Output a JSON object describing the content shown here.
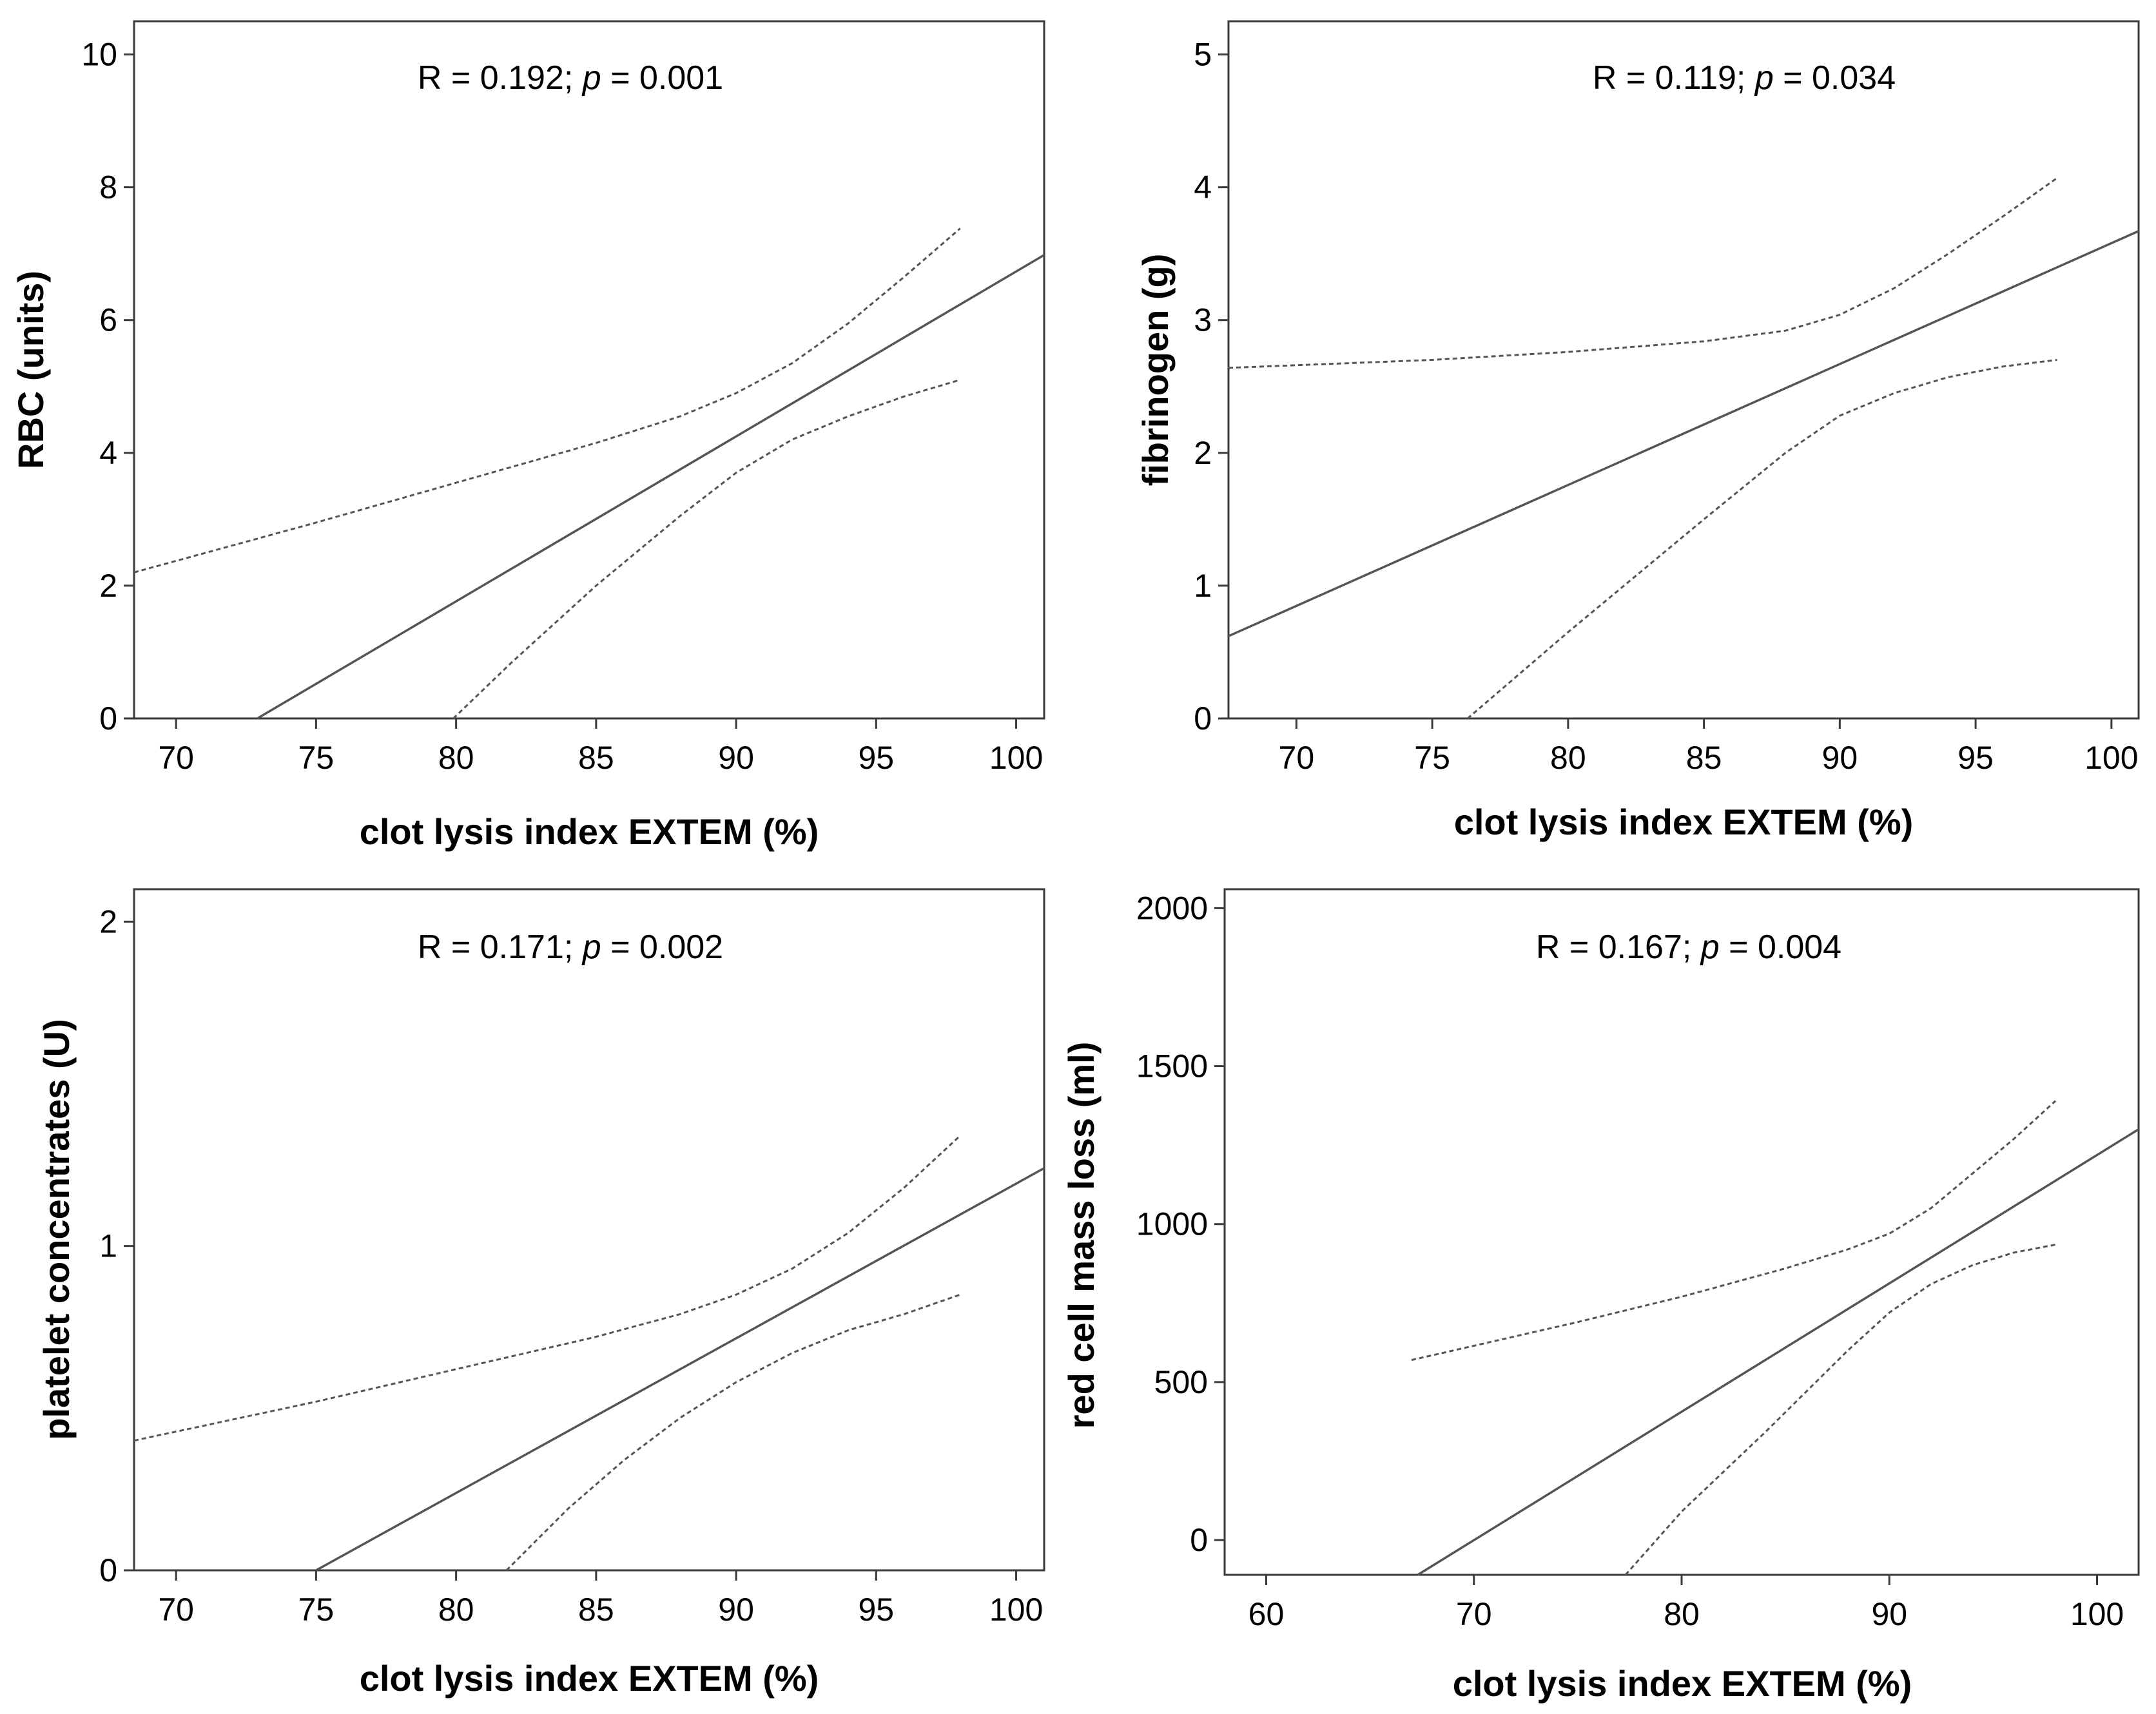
{
  "chart_data": [
    {
      "type": "line",
      "xlabel": "clot lysis index EXTEM  (%)",
      "ylabel": "RBC (units)",
      "xlim": [
        68.5,
        101
      ],
      "ylim": [
        0,
        10.5
      ],
      "xticks": [
        70,
        75,
        80,
        85,
        90,
        95,
        100
      ],
      "yticks": [
        0,
        2,
        4,
        6,
        8,
        10
      ],
      "annotation": {
        "prefix": "R = 0.192; ",
        "p_symbol": "p",
        "suffix": " = 0.001"
      },
      "series": [
        {
          "name": "fit",
          "style": "solid",
          "x": [
            72.9,
            101
          ],
          "y": [
            0,
            6.98
          ]
        },
        {
          "name": "upper-ci",
          "style": "dashed",
          "x": [
            68.5,
            75,
            80,
            85,
            88,
            90,
            92,
            94,
            96,
            98
          ],
          "y": [
            2.2,
            2.95,
            3.55,
            4.15,
            4.55,
            4.9,
            5.35,
            5.95,
            6.65,
            7.38
          ]
        },
        {
          "name": "lower-ci",
          "style": "dashed",
          "x": [
            79.9,
            82,
            85,
            88,
            90,
            92,
            94,
            96,
            98
          ],
          "y": [
            0,
            0.85,
            2.0,
            3.05,
            3.7,
            4.2,
            4.55,
            4.85,
            5.1
          ]
        }
      ]
    },
    {
      "type": "line",
      "xlabel": "clot lysis index EXTEM (%)",
      "ylabel": "fibrinogen (g)",
      "xlim": [
        67.5,
        101
      ],
      "ylim": [
        0,
        5.25
      ],
      "xticks": [
        70,
        75,
        80,
        85,
        90,
        95,
        100
      ],
      "yticks": [
        0,
        1,
        2,
        3,
        4,
        5
      ],
      "annotation": {
        "prefix": "R = 0.119; ",
        "p_symbol": "p",
        "suffix": " = 0.034"
      },
      "series": [
        {
          "name": "fit",
          "style": "solid",
          "x": [
            67.5,
            101
          ],
          "y": [
            0.62,
            3.67
          ]
        },
        {
          "name": "upper-ci",
          "style": "dashed",
          "x": [
            67.5,
            75,
            80,
            85,
            88,
            90,
            92,
            94,
            96,
            98
          ],
          "y": [
            2.64,
            2.7,
            2.76,
            2.84,
            2.92,
            3.04,
            3.24,
            3.5,
            3.78,
            4.07
          ]
        },
        {
          "name": "lower-ci",
          "style": "dashed",
          "x": [
            76.3,
            80,
            85,
            88,
            90,
            92,
            94,
            96,
            98
          ],
          "y": [
            0,
            0.65,
            1.5,
            2.0,
            2.28,
            2.45,
            2.57,
            2.65,
            2.7
          ]
        }
      ]
    },
    {
      "type": "line",
      "xlabel": "clot lysis index EXTEM (%)",
      "ylabel": "platelet concentrates (U)",
      "xlim": [
        68.5,
        101
      ],
      "ylim": [
        0,
        2.1
      ],
      "xticks": [
        70,
        75,
        80,
        85,
        90,
        95,
        100
      ],
      "yticks": [
        0,
        1,
        2
      ],
      "annotation": {
        "prefix": "R = 0.171; ",
        "p_symbol": "p",
        "suffix": " = 0.002"
      },
      "series": [
        {
          "name": "fit",
          "style": "solid",
          "x": [
            75,
            101
          ],
          "y": [
            0,
            1.24
          ]
        },
        {
          "name": "upper-ci",
          "style": "dashed",
          "x": [
            68.5,
            75,
            80,
            85,
            88,
            90,
            92,
            94,
            96,
            98
          ],
          "y": [
            0.4,
            0.52,
            0.62,
            0.72,
            0.79,
            0.85,
            0.93,
            1.04,
            1.18,
            1.34
          ]
        },
        {
          "name": "lower-ci",
          "style": "dashed",
          "x": [
            81.8,
            84,
            86,
            88,
            90,
            92,
            94,
            96,
            98
          ],
          "y": [
            0,
            0.19,
            0.34,
            0.47,
            0.58,
            0.67,
            0.74,
            0.79,
            0.85
          ]
        }
      ]
    },
    {
      "type": "line",
      "xlabel": "clot lysis index EXTEM (%)",
      "ylabel": "red cell mass loss (ml)",
      "xlim": [
        58,
        102
      ],
      "ylim": [
        -110,
        2060
      ],
      "xticks": [
        60,
        70,
        80,
        90,
        100
      ],
      "yticks": [
        0,
        500,
        1000,
        1500,
        2000
      ],
      "annotation": {
        "prefix": "R = 0.167; ",
        "p_symbol": "p",
        "suffix": " = 0.004"
      },
      "series": [
        {
          "name": "fit",
          "style": "solid",
          "x": [
            67.3,
            102
          ],
          "y": [
            -110,
            1300
          ]
        },
        {
          "name": "upper-ci",
          "style": "dashed",
          "x": [
            67,
            75,
            80,
            85,
            88,
            90,
            92,
            94,
            96,
            98
          ],
          "y": [
            570,
            690,
            770,
            860,
            920,
            970,
            1050,
            1160,
            1270,
            1390
          ]
        },
        {
          "name": "lower-ci",
          "style": "dashed",
          "x": [
            77.3,
            80,
            84,
            88,
            90,
            92,
            94,
            96,
            98
          ],
          "y": [
            -110,
            90,
            340,
            600,
            720,
            810,
            870,
            910,
            935
          ]
        }
      ]
    }
  ]
}
